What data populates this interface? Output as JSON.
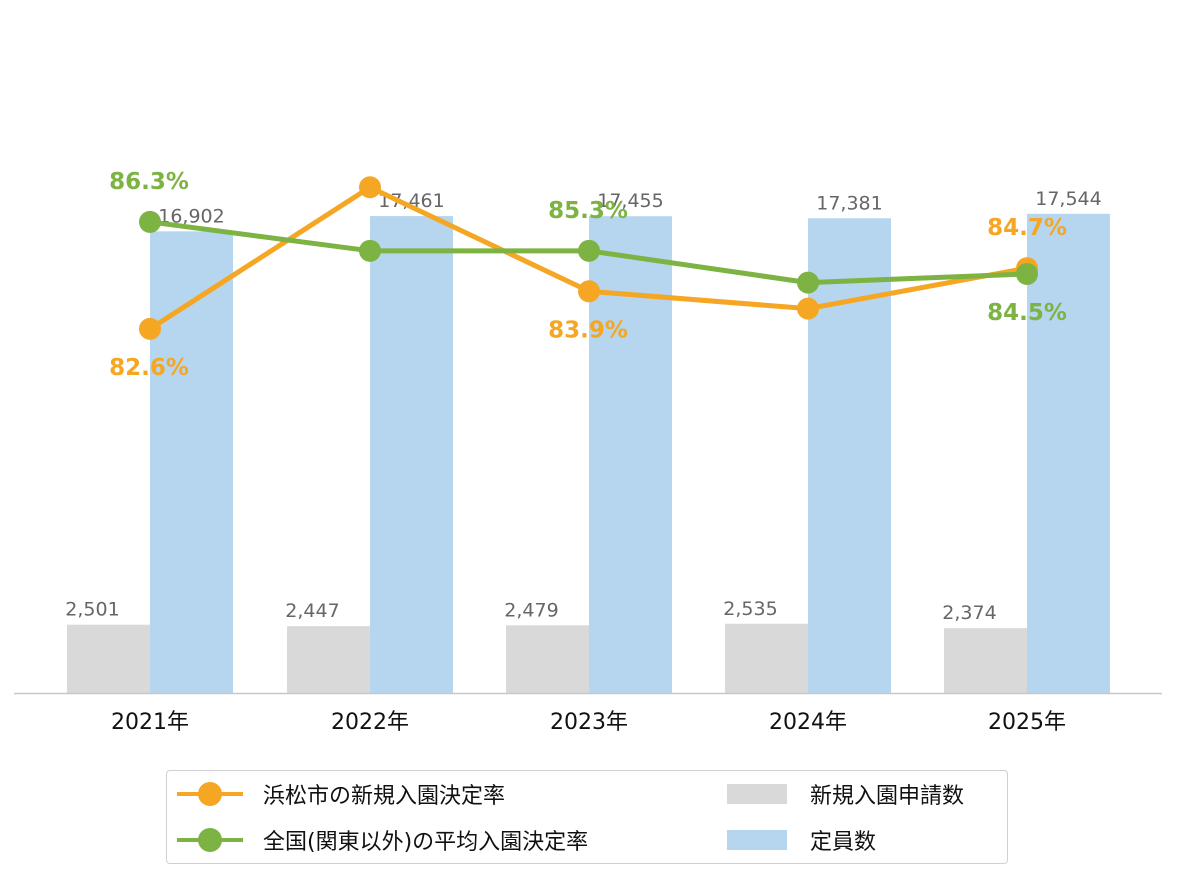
{
  "chart_data": {
    "type": "bar",
    "categories": [
      "2021年",
      "2022年",
      "2023年",
      "2024年",
      "2025年"
    ],
    "bar_series": [
      {
        "name": "新規入園申請数",
        "color": "#d9d9d9",
        "values": [
          2501,
          2447,
          2479,
          2535,
          2374
        ],
        "labels": [
          "2,501",
          "2,447",
          "2,479",
          "2,535",
          "2,374"
        ]
      },
      {
        "name": "定員数",
        "color": "#b6d5ef",
        "values": [
          16902,
          17461,
          17455,
          17381,
          17544
        ],
        "labels": [
          "16,902",
          "17,461",
          "17,455",
          "17,381",
          "17,544"
        ]
      }
    ],
    "line_series": [
      {
        "name": "浜松市の新規入園決定率",
        "color": "#f5a623",
        "values": [
          82.6,
          87.5,
          83.9,
          83.3,
          84.7
        ],
        "labels": [
          "82.6%",
          "",
          "83.9%",
          "",
          "84.7%"
        ],
        "label_pos": [
          "below",
          "",
          "below",
          "",
          "above"
        ]
      },
      {
        "name": "全国(関東以外)の平均入園決定率",
        "color": "#7cb342",
        "values": [
          86.3,
          85.3,
          85.3,
          84.2,
          84.5
        ],
        "labels": [
          "86.3%",
          "",
          "85.3%",
          "",
          "84.5%"
        ],
        "label_pos": [
          "above",
          "",
          "above",
          "",
          "below"
        ]
      }
    ],
    "y_left_range": [
      0,
      17500
    ],
    "y_right_range": [
      70,
      90
    ],
    "grid": false,
    "legend_position": "bottom"
  },
  "legend": {
    "line1": "浜松市の新規入園決定率",
    "line2": "全国(関東以外)の平均入園決定率",
    "bar1": "新規入園申請数",
    "bar2": "定員数"
  },
  "colors": {
    "applications": "#d9d9d9",
    "capacity": "#b6d5ef",
    "hamamatsu": "#f5a623",
    "national": "#7cb342"
  }
}
